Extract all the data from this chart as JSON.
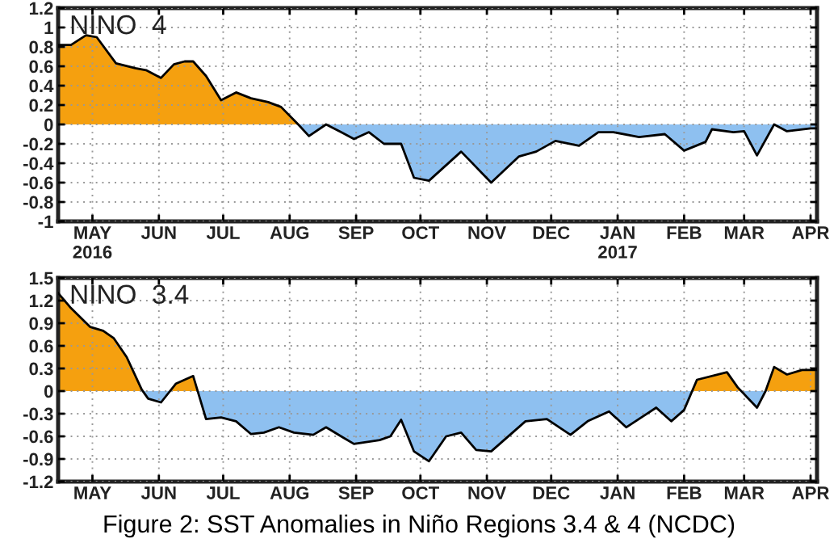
{
  "chart_data": [
    {
      "type": "area",
      "title": "NINO  4",
      "xlim": [
        "2016-04-15",
        "2017-04-04"
      ],
      "ylim": [
        -1,
        1.2
      ],
      "yticks": [
        -1,
        -0.8,
        -0.6,
        -0.4,
        -0.2,
        0,
        0.2,
        0.4,
        0.6,
        0.8,
        1,
        1.2
      ],
      "xticks": [
        {
          "value": "2016-05-01",
          "label": "MAY\n2016"
        },
        {
          "value": "2016-06-01",
          "label": "JUN"
        },
        {
          "value": "2016-07-01",
          "label": "JUL"
        },
        {
          "value": "2016-08-01",
          "label": "AUG"
        },
        {
          "value": "2016-09-01",
          "label": "SEP"
        },
        {
          "value": "2016-10-01",
          "label": "OCT"
        },
        {
          "value": "2016-11-01",
          "label": "NOV"
        },
        {
          "value": "2016-12-01",
          "label": "DEC"
        },
        {
          "value": "2017-01-01",
          "label": "JAN\n2017"
        },
        {
          "value": "2017-02-01",
          "label": "FEB"
        },
        {
          "value": "2017-03-01",
          "label": "MAR"
        },
        {
          "value": "2017-04-01",
          "label": "APR"
        }
      ],
      "grid": true,
      "series": [
        {
          "color": "#f5a00f",
          "x": [
            "2016-04-15",
            "2016-04-21",
            "2016-04-28",
            "2016-05-03",
            "2016-05-12",
            "2016-05-21",
            "2016-05-26",
            "2016-06-02",
            "2016-06-08",
            "2016-06-13",
            "2016-06-17",
            "2016-06-23",
            "2016-06-30",
            "2016-07-07",
            "2016-07-14",
            "2016-07-22",
            "2016-07-28",
            "2016-08-05"
          ],
          "values": [
            0.82,
            0.82,
            0.92,
            0.9,
            0.63,
            0.58,
            0.56,
            0.48,
            0.62,
            0.65,
            0.65,
            0.5,
            0.25,
            0.33,
            0.27,
            0.23,
            0.18,
            0
          ]
        },
        {
          "color": "#8ec0f0",
          "x": [
            "2016-08-05",
            "2016-08-10",
            "2016-08-18",
            "2016-08-25",
            "2016-08-31",
            "2016-09-07",
            "2016-09-14",
            "2016-09-22",
            "2016-09-28",
            "2016-10-05",
            "2016-10-20",
            "2016-11-03",
            "2016-11-16",
            "2016-11-24",
            "2016-12-03",
            "2016-12-14",
            "2016-12-23",
            "2016-12-30",
            "2017-01-11",
            "2017-01-23",
            "2017-02-01",
            "2017-02-11",
            "2017-02-14",
            "2017-02-24",
            "2017-03-01",
            "2017-03-07",
            "2017-03-15",
            "2017-03-21",
            "2017-04-01",
            "2017-04-04"
          ],
          "values": [
            0,
            -0.12,
            0,
            -0.08,
            -0.15,
            -0.08,
            -0.2,
            -0.2,
            -0.55,
            -0.58,
            -0.28,
            -0.6,
            -0.33,
            -0.28,
            -0.17,
            -0.22,
            -0.08,
            -0.08,
            -0.13,
            -0.1,
            -0.27,
            -0.18,
            -0.05,
            -0.08,
            -0.07,
            -0.32,
            0,
            -0.07,
            -0.04,
            -0.04
          ]
        },
        {
          "type": "line",
          "color": "#000000",
          "x": [
            "2016-04-15",
            "2016-04-21",
            "2016-04-28",
            "2016-05-03",
            "2016-05-12",
            "2016-05-21",
            "2016-05-26",
            "2016-06-02",
            "2016-06-08",
            "2016-06-13",
            "2016-06-17",
            "2016-06-23",
            "2016-06-30",
            "2016-07-07",
            "2016-07-14",
            "2016-07-22",
            "2016-07-28",
            "2016-08-05",
            "2016-08-10",
            "2016-08-18",
            "2016-08-25",
            "2016-08-31",
            "2016-09-07",
            "2016-09-14",
            "2016-09-22",
            "2016-09-28",
            "2016-10-05",
            "2016-10-20",
            "2016-11-03",
            "2016-11-16",
            "2016-11-24",
            "2016-12-03",
            "2016-12-14",
            "2016-12-23",
            "2016-12-30",
            "2017-01-11",
            "2017-01-23",
            "2017-02-01",
            "2017-02-11",
            "2017-02-14",
            "2017-02-24",
            "2017-03-01",
            "2017-03-07",
            "2017-03-15",
            "2017-03-21",
            "2017-04-01",
            "2017-04-04"
          ],
          "values": [
            0.82,
            0.82,
            0.92,
            0.9,
            0.63,
            0.58,
            0.56,
            0.48,
            0.62,
            0.65,
            0.65,
            0.5,
            0.25,
            0.33,
            0.27,
            0.23,
            0.18,
            0,
            -0.12,
            0,
            -0.08,
            -0.15,
            -0.08,
            -0.2,
            -0.2,
            -0.55,
            -0.58,
            -0.28,
            -0.6,
            -0.33,
            -0.28,
            -0.17,
            -0.22,
            -0.08,
            -0.08,
            -0.13,
            -0.1,
            -0.27,
            -0.18,
            -0.05,
            -0.08,
            -0.07,
            -0.32,
            0,
            -0.07,
            -0.04,
            -0.04
          ]
        }
      ]
    },
    {
      "type": "area",
      "title": "NINO  3.4",
      "xlim": [
        "2016-04-15",
        "2017-04-04"
      ],
      "ylim": [
        -1.2,
        1.5
      ],
      "yticks": [
        -1.2,
        -0.9,
        -0.6,
        -0.3,
        0,
        0.3,
        0.6,
        0.9,
        1.2,
        1.5
      ],
      "xticks": [
        {
          "value": "2016-05-01",
          "label": "MAY"
        },
        {
          "value": "2016-06-01",
          "label": "JUN"
        },
        {
          "value": "2016-07-01",
          "label": "JUL"
        },
        {
          "value": "2016-08-01",
          "label": "AUG"
        },
        {
          "value": "2016-09-01",
          "label": "SEP"
        },
        {
          "value": "2016-10-01",
          "label": "OCT"
        },
        {
          "value": "2016-11-01",
          "label": "NOV"
        },
        {
          "value": "2016-12-01",
          "label": "DEC"
        },
        {
          "value": "2017-01-01",
          "label": "JAN"
        },
        {
          "value": "2017-02-01",
          "label": "FEB"
        },
        {
          "value": "2017-03-01",
          "label": "MAR"
        },
        {
          "value": "2017-04-01",
          "label": "APR"
        }
      ],
      "grid": true,
      "annotations": [
        "Figure 2: SST Anomalies in Niño Regions 3.4 & 4 (NCDC)"
      ],
      "series": [
        {
          "color": "#f5a00f",
          "x": [
            "2016-04-15",
            "2016-04-21",
            "2016-04-30",
            "2016-05-06",
            "2016-05-11",
            "2016-05-17",
            "2016-05-24",
            "2016-05-25",
            "2016-06-01",
            "2016-06-06",
            "2016-06-09",
            "2016-06-17",
            "2016-06-19",
            "2016-07-01",
            "2017-02-05",
            "2017-02-07",
            "2017-02-21",
            "2017-02-26",
            "2017-02-28",
            "2017-03-05",
            "2017-03-11",
            "2017-03-15",
            "2017-03-21",
            "2017-03-28",
            "2017-04-04"
          ],
          "values": [
            1.3,
            1.1,
            0.85,
            0.8,
            0.7,
            0.45,
            0.02,
            0,
            null,
            0,
            0.1,
            0.2,
            0,
            null,
            0,
            0.15,
            0.25,
            0.05,
            0,
            null,
            0,
            0.32,
            0.22,
            0.28,
            0.28
          ]
        },
        {
          "color": "#8ec0f0",
          "x": [
            "2016-05-25",
            "2016-05-27",
            "2016-06-02",
            "2016-06-06",
            "2016-06-12",
            "2016-06-19",
            "2016-06-23",
            "2016-06-30",
            "2016-07-07",
            "2016-07-14",
            "2016-07-20",
            "2016-07-27",
            "2016-08-03",
            "2016-08-12",
            "2016-08-18",
            "2016-08-25",
            "2016-08-31",
            "2016-09-12",
            "2016-09-17",
            "2016-09-22",
            "2016-09-28",
            "2016-10-05",
            "2016-10-13",
            "2016-10-20",
            "2016-10-27",
            "2016-11-03",
            "2016-11-19",
            "2016-11-29",
            "2016-12-10",
            "2016-12-18",
            "2016-12-28",
            "2017-01-05",
            "2017-01-19",
            "2017-01-26",
            "2017-02-01",
            "2017-02-05",
            "2017-02-15",
            "2017-02-28",
            "2017-03-07",
            "2017-03-11"
          ],
          "values": [
            0,
            -0.1,
            -0.15,
            0,
            null,
            0,
            -0.37,
            -0.35,
            -0.4,
            -0.57,
            -0.55,
            -0.48,
            -0.55,
            -0.58,
            -0.48,
            -0.6,
            -0.7,
            -0.65,
            -0.6,
            -0.38,
            -0.8,
            -0.93,
            -0.6,
            -0.55,
            -0.78,
            -0.8,
            -0.4,
            -0.37,
            -0.58,
            -0.4,
            -0.27,
            -0.48,
            -0.22,
            -0.4,
            -0.25,
            0,
            null,
            0,
            -0.22,
            0
          ]
        },
        {
          "type": "line",
          "color": "#000000",
          "x": [
            "2016-04-15",
            "2016-04-21",
            "2016-04-30",
            "2016-05-06",
            "2016-05-11",
            "2016-05-17",
            "2016-05-24",
            "2016-05-27",
            "2016-06-02",
            "2016-06-09",
            "2016-06-17",
            "2016-06-23",
            "2016-06-30",
            "2016-07-07",
            "2016-07-14",
            "2016-07-20",
            "2016-07-27",
            "2016-08-03",
            "2016-08-12",
            "2016-08-18",
            "2016-08-25",
            "2016-08-31",
            "2016-09-12",
            "2016-09-17",
            "2016-09-22",
            "2016-09-28",
            "2016-10-05",
            "2016-10-13",
            "2016-10-20",
            "2016-10-27",
            "2016-11-03",
            "2016-11-19",
            "2016-11-29",
            "2016-12-10",
            "2016-12-18",
            "2016-12-28",
            "2017-01-05",
            "2017-01-19",
            "2017-01-26",
            "2017-02-01",
            "2017-02-07",
            "2017-02-21",
            "2017-02-26",
            "2017-03-07",
            "2017-03-11",
            "2017-03-15",
            "2017-03-21",
            "2017-03-28",
            "2017-04-04"
          ],
          "values": [
            1.3,
            1.1,
            0.85,
            0.8,
            0.7,
            0.45,
            0.02,
            -0.1,
            -0.15,
            0.1,
            0.2,
            -0.37,
            -0.35,
            -0.4,
            -0.57,
            -0.55,
            -0.48,
            -0.55,
            -0.58,
            -0.48,
            -0.6,
            -0.7,
            -0.65,
            -0.6,
            -0.38,
            -0.8,
            -0.93,
            -0.6,
            -0.55,
            -0.78,
            -0.8,
            -0.4,
            -0.37,
            -0.58,
            -0.4,
            -0.27,
            -0.48,
            -0.22,
            -0.4,
            -0.25,
            0.15,
            0.25,
            0.05,
            -0.22,
            0,
            0.32,
            0.22,
            0.28,
            0.28
          ]
        }
      ]
    }
  ]
}
